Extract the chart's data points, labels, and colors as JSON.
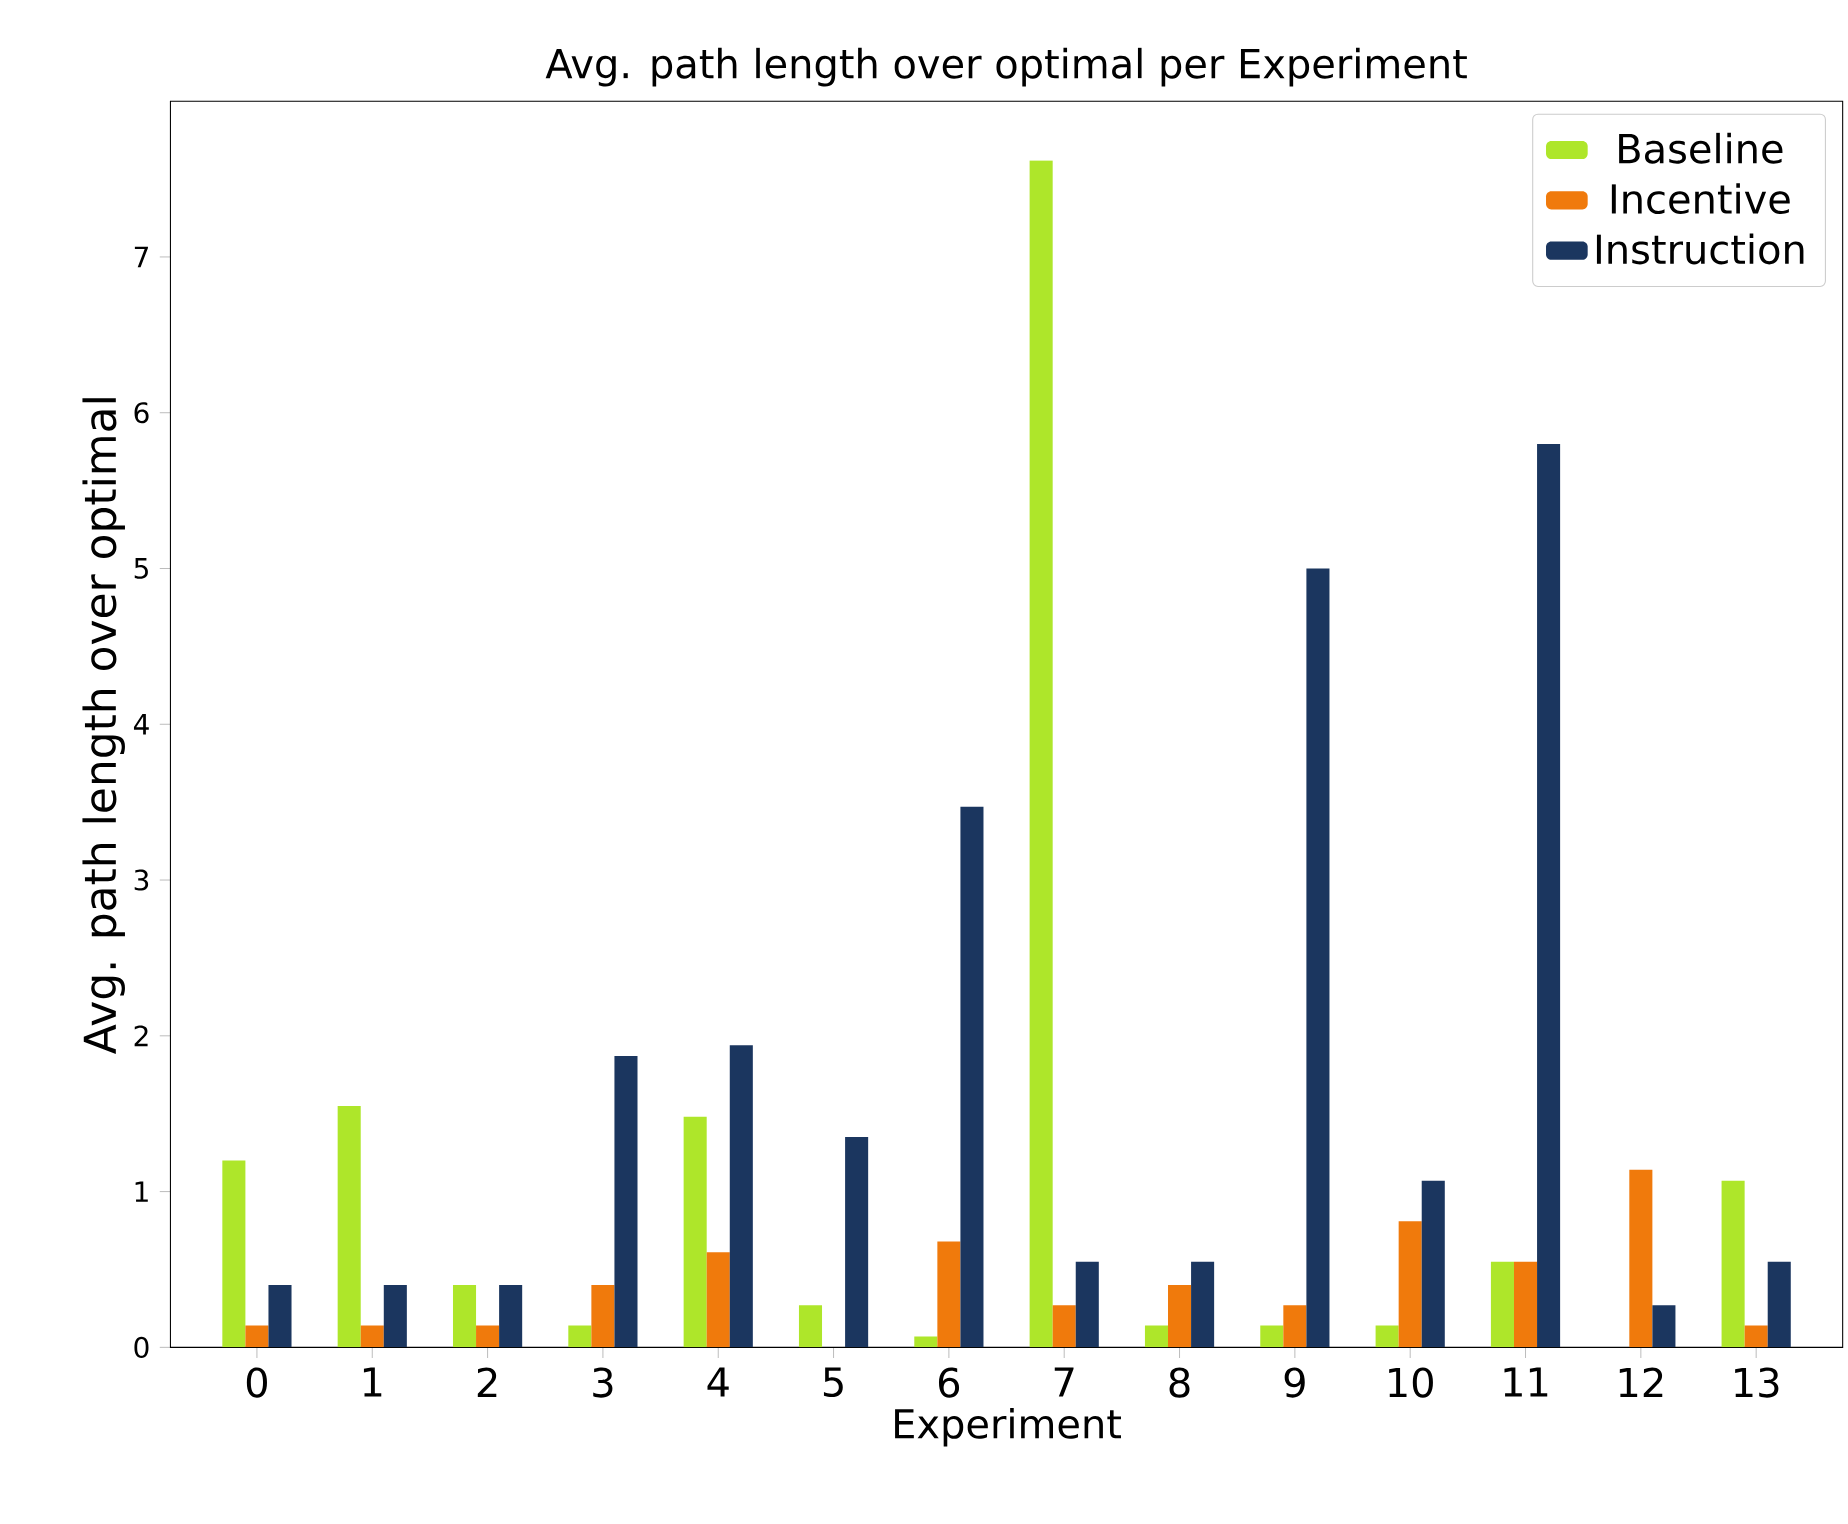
{
  "chart_data": {
    "type": "bar",
    "title": "Avg. path length over optimal per Experiment",
    "xlabel": "Experiment",
    "ylabel": "Avg. path length over optimal",
    "categories": [
      "0",
      "1",
      "2",
      "3",
      "4",
      "5",
      "6",
      "7",
      "8",
      "9",
      "10",
      "11",
      "12",
      "13"
    ],
    "series": [
      {
        "name": "Baseline",
        "color": "#aee62a",
        "values": [
          1.2,
          1.55,
          0.4,
          0.14,
          1.48,
          0.27,
          0.07,
          7.62,
          0.14,
          0.14,
          0.14,
          0.55,
          0,
          1.07
        ]
      },
      {
        "name": "Incentive",
        "color": "#f07a0c",
        "values": [
          0.14,
          0.14,
          0.14,
          0.4,
          0.61,
          0,
          0.68,
          0.27,
          0.4,
          0.27,
          0.81,
          0.55,
          1.14,
          0.14
        ]
      },
      {
        "name": "Instruction",
        "color": "#1b365f",
        "values": [
          0.4,
          0.4,
          0.4,
          1.87,
          1.94,
          1.35,
          3.47,
          0.55,
          0.55,
          5.0,
          1.07,
          5.8,
          0.27,
          0.55
        ]
      }
    ],
    "ylim": [
      0,
      8.0
    ],
    "yticks": [
      0,
      1,
      2,
      3,
      4,
      5,
      6,
      7
    ],
    "legend": "top right"
  }
}
